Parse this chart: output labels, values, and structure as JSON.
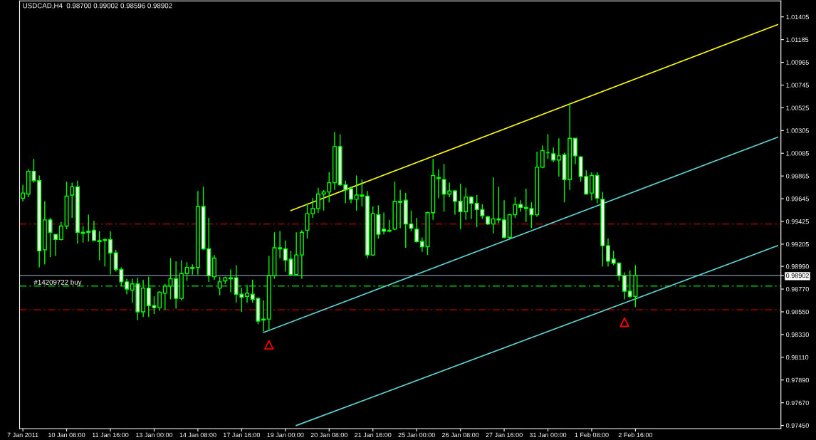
{
  "chart_data": {
    "type": "candlestick",
    "title": "USDCAD,H4  0.98700 0.99002 0.98596 0.98902",
    "color": "#00ff00",
    "categories": [
      "7 Jan 2011",
      null,
      null,
      null,
      null,
      null,
      null,
      null,
      "10 Jan 08:00",
      null,
      null,
      null,
      null,
      null,
      null,
      null,
      "11 Jan 16:00",
      null,
      null,
      null,
      null,
      null,
      null,
      null,
      "13 Jan 00:00",
      null,
      null,
      null,
      null,
      null,
      null,
      null,
      "14 Jan 08:00",
      null,
      null,
      null,
      null,
      null,
      null,
      null,
      "17 Jan 16:00",
      null,
      null,
      null,
      null,
      null,
      null,
      null,
      "19 Jan 00:00",
      null,
      null,
      null,
      null,
      null,
      null,
      null,
      "20 Jan 08:00",
      null,
      null,
      null,
      null,
      null,
      null,
      null,
      "21 Jan 16:00",
      null,
      null,
      null,
      null,
      null,
      null,
      null,
      "25 Jan 00:00",
      null,
      null,
      null,
      null,
      null,
      null,
      null,
      "26 Jan 08:00",
      null,
      null,
      null,
      null,
      null,
      null,
      null,
      "27 Jan 16:00",
      null,
      null,
      null,
      null,
      null,
      null,
      null,
      "31 Jan 00:00",
      null,
      null,
      null,
      null,
      null,
      null,
      null,
      "1 Feb 08:00",
      null,
      null,
      null,
      null,
      null,
      null,
      null,
      "2 Feb 16:00",
      null,
      null,
      null,
      null,
      null,
      null,
      null,
      null,
      null,
      null,
      null,
      null,
      null,
      null,
      null,
      null,
      null,
      null,
      null,
      null,
      null,
      null,
      null,
      null,
      null,
      null
    ],
    "ohlc": [
      [
        0.9965,
        0.9978,
        0.9962,
        0.997
      ],
      [
        0.9969,
        0.9993,
        0.9966,
        0.9991
      ],
      [
        0.9991,
        1.0003,
        0.998,
        0.9982
      ],
      [
        0.9982,
        0.9987,
        0.9898,
        0.9914
      ],
      [
        0.9915,
        0.9962,
        0.9901,
        0.9944
      ],
      [
        0.9944,
        0.9946,
        0.9908,
        0.9932
      ],
      [
        0.993,
        0.993,
        0.9909,
        0.9925
      ],
      [
        0.9925,
        0.9942,
        0.9924,
        0.9938
      ],
      [
        0.9938,
        0.9981,
        0.9935,
        0.9967
      ],
      [
        0.9968,
        0.998,
        0.9946,
        0.9976
      ],
      [
        0.9976,
        0.9982,
        0.9921,
        0.9932
      ],
      [
        0.9931,
        0.9938,
        0.9922,
        0.9932
      ],
      [
        0.9933,
        0.9949,
        0.9923,
        0.9932
      ],
      [
        0.9934,
        0.9943,
        0.9924,
        0.9924
      ],
      [
        0.9924,
        0.9933,
        0.9905,
        0.9923
      ],
      [
        0.9925,
        0.9926,
        0.9899,
        0.9924
      ],
      [
        0.9925,
        0.9933,
        0.9891,
        0.9912
      ],
      [
        0.9912,
        0.9915,
        0.9894,
        0.9896
      ],
      [
        0.9896,
        0.9898,
        0.988,
        0.9884
      ],
      [
        0.9884,
        0.9887,
        0.9872,
        0.9877
      ],
      [
        0.9876,
        0.9887,
        0.9864,
        0.9882
      ],
      [
        0.9882,
        0.9888,
        0.9847,
        0.9855
      ],
      [
        0.9855,
        0.9886,
        0.985,
        0.9878
      ],
      [
        0.9878,
        0.9889,
        0.985,
        0.9861
      ],
      [
        0.9861,
        0.987,
        0.9853,
        0.9859
      ],
      [
        0.9859,
        0.9875,
        0.9856,
        0.9874
      ],
      [
        0.9873,
        0.9882,
        0.9857,
        0.988
      ],
      [
        0.988,
        0.9907,
        0.9867,
        0.9887
      ],
      [
        0.9887,
        0.9904,
        0.9858,
        0.9868
      ],
      [
        0.9868,
        0.9905,
        0.9866,
        0.9892
      ],
      [
        0.9892,
        0.9903,
        0.9885,
        0.9898
      ],
      [
        0.9898,
        0.9901,
        0.9891,
        0.9897
      ],
      [
        0.9898,
        0.9972,
        0.9891,
        0.9957
      ],
      [
        0.9957,
        0.9976,
        0.9915,
        0.9916
      ],
      [
        0.9916,
        0.9946,
        0.9884,
        0.989
      ],
      [
        0.9889,
        0.991,
        0.9886,
        0.9907
      ],
      [
        0.9878,
        0.9889,
        0.9871,
        0.9884
      ],
      [
        0.9885,
        0.9889,
        0.9882,
        0.9888
      ],
      [
        0.9888,
        0.9896,
        0.9874,
        0.9887
      ],
      [
        0.9888,
        0.99,
        0.9864,
        0.9872
      ],
      [
        0.9872,
        0.9878,
        0.9855,
        0.9869
      ],
      [
        0.987,
        0.9881,
        0.9864,
        0.9873
      ],
      [
        0.9872,
        0.9886,
        0.9864,
        0.9867
      ],
      [
        0.9868,
        0.9869,
        0.9843,
        0.9846
      ],
      [
        0.9848,
        0.9866,
        0.9836,
        0.9847
      ],
      [
        0.9848,
        0.9909,
        0.9837,
        0.989
      ],
      [
        0.989,
        0.9932,
        0.9887,
        0.9917
      ],
      [
        0.9917,
        0.9933,
        0.9907,
        0.9916
      ],
      [
        0.9916,
        0.9924,
        0.9894,
        0.9905
      ],
      [
        0.9906,
        0.9914,
        0.989,
        0.9891
      ],
      [
        0.9891,
        0.9932,
        0.989,
        0.991
      ],
      [
        0.991,
        0.9934,
        0.9887,
        0.9932
      ],
      [
        0.9934,
        0.996,
        0.9926,
        0.995
      ],
      [
        0.995,
        0.9965,
        0.9946,
        0.9955
      ],
      [
        0.9955,
        0.9975,
        0.9951,
        0.9969
      ],
      [
        0.9969,
        0.9973,
        0.9953,
        0.9971
      ],
      [
        0.9971,
        0.999,
        0.9961,
        0.998
      ],
      [
        0.998,
        1.0029,
        0.9973,
        1.0015
      ],
      [
        1.0015,
        1.0027,
        0.9977,
        0.9978
      ],
      [
        0.9978,
        0.9982,
        0.996,
        0.9973
      ],
      [
        0.9974,
        0.9976,
        0.996,
        0.9964
      ],
      [
        0.9964,
        0.9987,
        0.9953,
        0.9968
      ],
      [
        0.9968,
        0.9983,
        0.9957,
        0.9967
      ],
      [
        0.9967,
        0.9972,
        0.9907,
        0.991
      ],
      [
        0.991,
        0.9957,
        0.9909,
        0.995
      ],
      [
        0.9949,
        0.9958,
        0.9926,
        0.993
      ],
      [
        0.9935,
        0.9951,
        0.993,
        0.9933
      ],
      [
        0.9933,
        0.9944,
        0.9932,
        0.9934
      ],
      [
        0.9935,
        0.9981,
        0.9934,
        0.9962
      ],
      [
        0.9962,
        0.9973,
        0.9936,
        0.9961
      ],
      [
        0.9963,
        0.997,
        0.9917,
        0.994
      ],
      [
        0.994,
        0.9953,
        0.9933,
        0.9936
      ],
      [
        0.9935,
        0.9946,
        0.9922,
        0.9923
      ],
      [
        0.9923,
        0.9927,
        0.9913,
        0.9918
      ],
      [
        0.9918,
        0.9952,
        0.991,
        0.9951
      ],
      [
        0.9951,
        1.0003,
        0.9944,
        0.9987
      ],
      [
        0.9985,
        0.9993,
        0.9965,
        0.9984
      ],
      [
        0.9983,
        0.9998,
        0.9952,
        0.9969
      ],
      [
        0.9969,
        0.998,
        0.9966,
        0.9972
      ],
      [
        0.9972,
        0.9973,
        0.9949,
        0.9962
      ],
      [
        0.9962,
        0.9979,
        0.9935,
        0.9952
      ],
      [
        0.9952,
        0.9975,
        0.9944,
        0.9966
      ],
      [
        0.9966,
        0.9967,
        0.9945,
        0.996
      ],
      [
        0.996,
        0.9968,
        0.9937,
        0.9954
      ],
      [
        0.9954,
        0.9959,
        0.9945,
        0.9948
      ],
      [
        0.9947,
        0.9948,
        0.9939,
        0.994
      ],
      [
        0.994,
        0.9985,
        0.9931,
        0.9945
      ],
      [
        0.9945,
        0.9976,
        0.9941,
        0.9944
      ],
      [
        0.9944,
        0.9963,
        0.9926,
        0.9927
      ],
      [
        0.9927,
        0.995,
        0.9926,
        0.9949
      ],
      [
        0.9949,
        0.9966,
        0.9946,
        0.9959
      ],
      [
        0.9959,
        0.9963,
        0.9952,
        0.9956
      ],
      [
        0.9956,
        0.9974,
        0.9942,
        0.9955
      ],
      [
        0.9955,
        0.9961,
        0.9936,
        0.9949
      ],
      [
        0.9949,
        1.001,
        0.9947,
        0.9995
      ],
      [
        0.9995,
        1.0016,
        0.9994,
        1.0011
      ],
      [
        1.0009,
        1.0027,
        1.0003,
        1.0009
      ],
      [
        1.0008,
        1.0014,
        1.0,
        1.0002
      ],
      [
        1.0002,
        1.0023,
        0.9986,
        1.0006
      ],
      [
        1.0007,
        1.0009,
        0.9961,
        0.9983
      ],
      [
        0.9983,
        1.0057,
        0.9973,
        1.0023
      ],
      [
        1.0023,
        1.0023,
        0.9998,
        1.0006
      ],
      [
        1.0005,
        1.0006,
        0.9981,
        0.9986
      ],
      [
        0.9986,
        0.9992,
        0.9969,
        0.9969
      ],
      [
        0.997,
        0.999,
        0.9963,
        0.9987
      ],
      [
        0.9987,
        0.999,
        0.996,
        0.9965
      ],
      [
        0.9964,
        0.9971,
        0.9899,
        0.9919
      ],
      [
        0.9919,
        0.9926,
        0.9899,
        0.9904
      ],
      [
        0.9906,
        0.9914,
        0.99,
        0.9902
      ],
      [
        0.9902,
        0.9903,
        0.9885,
        0.989
      ],
      [
        0.989,
        0.9893,
        0.9867,
        0.9875
      ],
      [
        0.9875,
        0.9895,
        0.9868,
        0.987
      ],
      [
        0.987,
        0.99002,
        0.98596,
        0.98902
      ],
      null,
      null,
      null,
      null,
      null,
      null,
      null,
      null,
      null,
      null,
      null,
      null,
      null,
      null,
      null,
      null,
      null,
      null,
      null,
      null,
      null,
      null,
      null,
      null,
      null,
      null
    ],
    "series": [
      {
        "type": "line",
        "color": "#ffff00",
        "values": [
          null,
          null,
          null,
          null,
          null,
          null,
          null,
          null,
          null,
          null,
          null,
          null,
          null,
          null,
          null,
          null,
          null,
          null,
          null,
          null,
          null,
          null,
          null,
          null,
          null,
          null,
          null,
          null,
          null,
          null,
          null,
          null,
          null,
          null,
          null,
          null,
          null,
          null,
          null,
          null,
          null,
          null,
          null,
          null,
          null,
          null,
          null,
          null,
          null,
          0.9953,
          null,
          null,
          null,
          null,
          null,
          null,
          null,
          null,
          null,
          null,
          null,
          null,
          null,
          null,
          null,
          null,
          null,
          null,
          null,
          null,
          null,
          null,
          null,
          null,
          null,
          null,
          null,
          null,
          null,
          null,
          null,
          null,
          null,
          null,
          null,
          null,
          null,
          null,
          null,
          null,
          null,
          null,
          null,
          null,
          null,
          null,
          null,
          null,
          null,
          null,
          null,
          null,
          null,
          null,
          null,
          null,
          null,
          null,
          null,
          null,
          null,
          null,
          null,
          null,
          null,
          null,
          null,
          null,
          null,
          null,
          null,
          null,
          null,
          null,
          null,
          null,
          null,
          null,
          null,
          null,
          null,
          null,
          null,
          null,
          null,
          null,
          null,
          null,
          1.0133
        ]
      },
      {
        "type": "line",
        "color": "#5fd3d3",
        "values": [
          null,
          null,
          null,
          null,
          null,
          null,
          null,
          null,
          null,
          null,
          null,
          null,
          null,
          null,
          null,
          null,
          null,
          null,
          null,
          null,
          null,
          null,
          null,
          null,
          null,
          null,
          null,
          null,
          null,
          null,
          null,
          null,
          null,
          null,
          null,
          null,
          null,
          null,
          null,
          null,
          null,
          null,
          null,
          null,
          0.9835,
          null,
          null,
          null,
          null,
          null,
          null,
          null,
          null,
          null,
          null,
          null,
          null,
          null,
          null,
          null,
          null,
          null,
          null,
          null,
          null,
          null,
          null,
          null,
          null,
          null,
          null,
          null,
          null,
          null,
          null,
          null,
          null,
          null,
          null,
          null,
          null,
          null,
          null,
          null,
          null,
          null,
          null,
          null,
          null,
          null,
          null,
          null,
          null,
          null,
          null,
          null,
          null,
          null,
          null,
          null,
          null,
          null,
          null,
          null,
          null,
          null,
          null,
          null,
          null,
          null,
          null,
          null,
          null,
          null,
          null,
          null,
          null,
          null,
          null,
          null,
          null,
          null,
          null,
          null,
          null,
          null,
          null,
          null,
          null,
          null,
          null,
          null,
          null,
          null,
          null,
          null,
          null,
          null,
          1.0024
        ]
      },
      {
        "type": "line",
        "color": "#5fd3d3",
        "values": [
          null,
          null,
          null,
          null,
          null,
          null,
          null,
          null,
          null,
          null,
          null,
          null,
          null,
          null,
          null,
          null,
          null,
          null,
          null,
          null,
          null,
          null,
          null,
          null,
          null,
          null,
          null,
          null,
          null,
          null,
          null,
          null,
          null,
          null,
          null,
          null,
          null,
          null,
          null,
          null,
          null,
          null,
          null,
          null,
          null,
          null,
          null,
          null,
          null,
          null,
          0.9745,
          null,
          null,
          null,
          null,
          null,
          null,
          null,
          null,
          null,
          null,
          null,
          null,
          null,
          null,
          null,
          null,
          null,
          null,
          null,
          null,
          null,
          null,
          null,
          null,
          null,
          null,
          null,
          null,
          null,
          null,
          null,
          null,
          null,
          null,
          null,
          null,
          null,
          null,
          null,
          null,
          null,
          null,
          null,
          null,
          null,
          null,
          null,
          null,
          null,
          null,
          null,
          null,
          null,
          null,
          null,
          null,
          null,
          null,
          null,
          null,
          null,
          null,
          null,
          null,
          null,
          null,
          null,
          null,
          null,
          null,
          null,
          null,
          null,
          null,
          null,
          null,
          null,
          null,
          null,
          null,
          null,
          null,
          null,
          null,
          null,
          null,
          null,
          0.9919
        ]
      },
      {
        "type": "scatter",
        "color": "#ff0000",
        "marker": "triangle",
        "values": [
          null,
          null,
          null,
          null,
          null,
          null,
          null,
          null,
          null,
          null,
          null,
          null,
          null,
          null,
          null,
          null,
          null,
          null,
          null,
          null,
          null,
          null,
          null,
          null,
          null,
          null,
          null,
          null,
          null,
          null,
          null,
          null,
          null,
          null,
          null,
          null,
          null,
          null,
          null,
          null,
          null,
          null,
          null,
          null,
          null,
          0.9823,
          null,
          null,
          null,
          null,
          null,
          null,
          null,
          null,
          null,
          null,
          null,
          null,
          null,
          null,
          null,
          null,
          null,
          null,
          null,
          null,
          null,
          null,
          null,
          null,
          null,
          null,
          null,
          null,
          null,
          null,
          null,
          null,
          null,
          null,
          null,
          null,
          null,
          null,
          null,
          null,
          null,
          null,
          null,
          null,
          null,
          null,
          null,
          null,
          null,
          null,
          null,
          null,
          null,
          null,
          null,
          null,
          null,
          null,
          null,
          null,
          null,
          null,
          null,
          null,
          0.9845,
          null,
          null,
          null,
          null,
          null,
          null,
          null,
          null,
          null,
          null,
          null,
          null,
          null,
          null,
          null,
          null,
          null,
          null,
          null,
          null,
          null,
          null,
          null,
          null,
          null,
          null,
          null,
          null
        ]
      }
    ],
    "ylim": [
      0.9742,
      1.0156
    ],
    "yticks": [
      {
        "value": 1.01405,
        "label": "1.01405"
      },
      {
        "value": 1.01185,
        "label": "1.01185"
      },
      {
        "value": 1.00965,
        "label": "1.00965"
      },
      {
        "value": 1.00745,
        "label": "1.00745"
      },
      {
        "value": 1.00525,
        "label": "1.00525"
      },
      {
        "value": 1.00305,
        "label": "1.00305"
      },
      {
        "value": 1.00085,
        "label": "1.00085"
      },
      {
        "value": 0.99865,
        "label": "0.99865"
      },
      {
        "value": 0.99645,
        "label": "0.99645"
      },
      {
        "value": 0.99425,
        "label": "0.99425"
      },
      {
        "value": 0.99205,
        "label": "0.99205"
      },
      {
        "value": 0.9899,
        "label": "0.98990"
      },
      {
        "value": 0.98902,
        "label": "0.98902"
      },
      {
        "value": 0.9877,
        "label": "0.98770"
      },
      {
        "value": 0.9855,
        "label": "0.98550"
      },
      {
        "value": 0.9833,
        "label": "0.98330"
      },
      {
        "value": 0.9811,
        "label": "0.98110"
      },
      {
        "value": 0.9789,
        "label": "0.97890"
      },
      {
        "value": 0.9767,
        "label": "0.97670"
      },
      {
        "value": 0.9745,
        "label": "0.97450"
      }
    ],
    "ref_lines": [
      {
        "axis": "y",
        "value": 0.98902,
        "color": "#8090a8",
        "line_style": "solid"
      },
      {
        "axis": "y",
        "value": 0.988,
        "label": "#14209722 buy",
        "color": "#00c800",
        "line_style": "dashed"
      },
      {
        "axis": "y",
        "value": 0.994,
        "color": "#c80000",
        "line_style": "dashed"
      },
      {
        "axis": "y",
        "value": 0.9857,
        "color": "#c80000",
        "line_style": "dashed"
      }
    ],
    "grid": false,
    "legend": false
  }
}
